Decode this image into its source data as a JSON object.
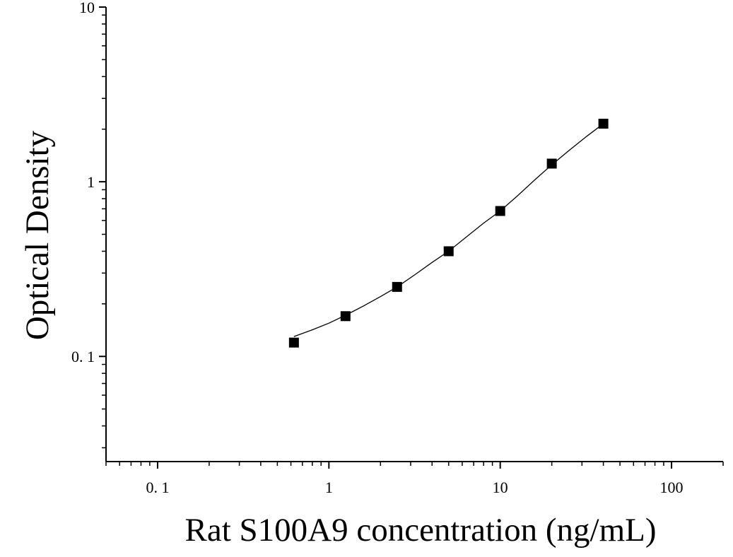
{
  "chart_data": {
    "type": "scatter",
    "title": "",
    "xlabel": "Rat S100A9 concentration (ng/mL)",
    "ylabel": "Optical Density",
    "x_scale": "log",
    "y_scale": "log",
    "xlim": [
      0.05,
      200
    ],
    "ylim": [
      0.025,
      10
    ],
    "grid": false,
    "x_ticks": [
      {
        "value": 0.1,
        "label": "0. 1"
      },
      {
        "value": 1,
        "label": "1"
      },
      {
        "value": 10,
        "label": "10"
      },
      {
        "value": 100,
        "label": "100"
      }
    ],
    "y_ticks": [
      {
        "value": 0.1,
        "label": "0. 1"
      },
      {
        "value": 1,
        "label": "1"
      },
      {
        "value": 10,
        "label": "10"
      }
    ],
    "series": [
      {
        "marker": "square",
        "color": "#000000",
        "x": [
          0.625,
          1.25,
          2.5,
          5,
          10,
          20,
          40
        ],
        "y": [
          0.12,
          0.17,
          0.25,
          0.4,
          0.68,
          1.27,
          2.15
        ]
      }
    ],
    "fit_curve": {
      "color": "#000000",
      "x": [
        0.625,
        0.8,
        1,
        1.25,
        1.6,
        2,
        2.5,
        3.2,
        4,
        5,
        6.3,
        8,
        10,
        12.6,
        16,
        20,
        25,
        32,
        40
      ],
      "y": [
        0.13,
        0.142,
        0.155,
        0.172,
        0.195,
        0.22,
        0.25,
        0.295,
        0.345,
        0.4,
        0.48,
        0.58,
        0.68,
        0.83,
        1.03,
        1.25,
        1.5,
        1.82,
        2.15
      ]
    }
  }
}
